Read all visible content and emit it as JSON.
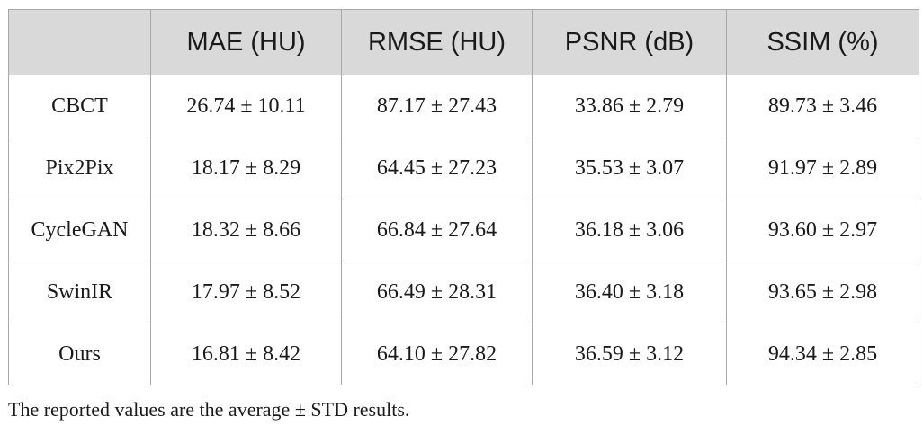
{
  "table": {
    "headers": [
      "",
      "MAE (HU)",
      "RMSE (HU)",
      "PSNR (dB)",
      "SSIM (%)"
    ],
    "rows": [
      {
        "method": "CBCT",
        "cells": [
          "26.74 ± 10.11",
          "87.17 ± 27.43",
          "33.86 ± 2.79",
          "89.73 ± 3.46"
        ]
      },
      {
        "method": "Pix2Pix",
        "cells": [
          "18.17 ± 8.29",
          "64.45 ± 27.23",
          "35.53 ± 3.07",
          "91.97 ± 2.89"
        ]
      },
      {
        "method": "CycleGAN",
        "cells": [
          "18.32 ± 8.66",
          "66.84 ± 27.64",
          "36.18 ± 3.06",
          "93.60 ± 2.97"
        ]
      },
      {
        "method": "SwinIR",
        "cells": [
          "17.97 ± 8.52",
          "66.49 ± 28.31",
          "36.40 ± 3.18",
          "93.65 ± 2.98"
        ]
      },
      {
        "method": "Ours",
        "cells": [
          "16.81 ± 8.42",
          "64.10 ± 27.82",
          "36.59 ± 3.12",
          "94.34 ± 2.85"
        ]
      }
    ]
  },
  "footnote": "The reported values are the average ± STD results.",
  "colors": {
    "header_background": "#d9d9d9",
    "border": "#a8a8a8",
    "text": "#1a1a1a"
  }
}
